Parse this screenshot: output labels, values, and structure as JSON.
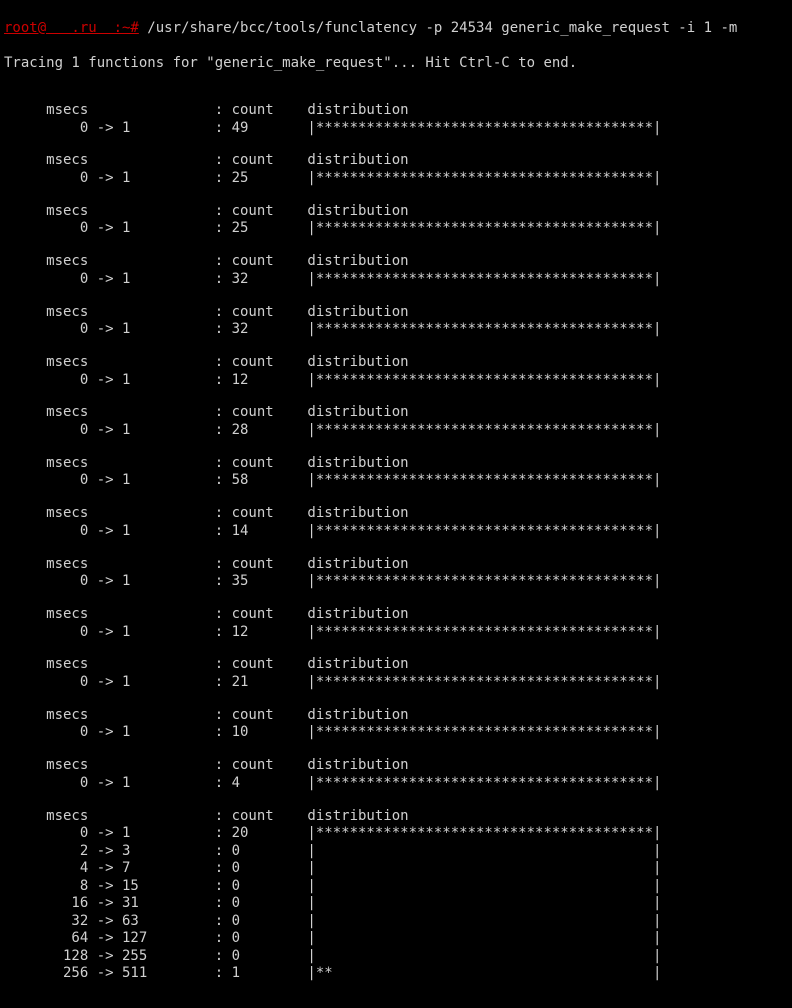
{
  "prompt": {
    "user_host": "root@   .ru  :~#",
    "command": "/usr/share/bcc/tools/funclatency -p 24534 generic_make_request -i 1 -m"
  },
  "trace_line": "Tracing 1 functions for \"generic_make_request\"... Hit Ctrl-C to end.",
  "header_labels": {
    "msecs": "msecs",
    "count": "count",
    "distribution": "distribution"
  },
  "bar": {
    "full_width": 40,
    "char": "*",
    "open": "|",
    "close": "|"
  },
  "colon": ":",
  "arrow": "->",
  "single_blocks": [
    {
      "range_lo": 0,
      "range_hi": 1,
      "count": 49,
      "fill": 40
    },
    {
      "range_lo": 0,
      "range_hi": 1,
      "count": 25,
      "fill": 40
    },
    {
      "range_lo": 0,
      "range_hi": 1,
      "count": 25,
      "fill": 40
    },
    {
      "range_lo": 0,
      "range_hi": 1,
      "count": 32,
      "fill": 40
    },
    {
      "range_lo": 0,
      "range_hi": 1,
      "count": 32,
      "fill": 40
    },
    {
      "range_lo": 0,
      "range_hi": 1,
      "count": 12,
      "fill": 40
    },
    {
      "range_lo": 0,
      "range_hi": 1,
      "count": 28,
      "fill": 40
    },
    {
      "range_lo": 0,
      "range_hi": 1,
      "count": 58,
      "fill": 40
    },
    {
      "range_lo": 0,
      "range_hi": 1,
      "count": 14,
      "fill": 40
    },
    {
      "range_lo": 0,
      "range_hi": 1,
      "count": 35,
      "fill": 40
    },
    {
      "range_lo": 0,
      "range_hi": 1,
      "count": 12,
      "fill": 40
    },
    {
      "range_lo": 0,
      "range_hi": 1,
      "count": 21,
      "fill": 40
    },
    {
      "range_lo": 0,
      "range_hi": 1,
      "count": 10,
      "fill": 40
    },
    {
      "range_lo": 0,
      "range_hi": 1,
      "count": 4,
      "fill": 40
    }
  ],
  "multi_block": {
    "rows": [
      {
        "range_lo": 0,
        "range_hi": 1,
        "count": 20,
        "fill": 40
      },
      {
        "range_lo": 2,
        "range_hi": 3,
        "count": 0,
        "fill": 0
      },
      {
        "range_lo": 4,
        "range_hi": 7,
        "count": 0,
        "fill": 0
      },
      {
        "range_lo": 8,
        "range_hi": 15,
        "count": 0,
        "fill": 0
      },
      {
        "range_lo": 16,
        "range_hi": 31,
        "count": 0,
        "fill": 0
      },
      {
        "range_lo": 32,
        "range_hi": 63,
        "count": 0,
        "fill": 0
      },
      {
        "range_lo": 64,
        "range_hi": 127,
        "count": 0,
        "fill": 0
      },
      {
        "range_lo": 128,
        "range_hi": 255,
        "count": 0,
        "fill": 0
      },
      {
        "range_lo": 256,
        "range_hi": 511,
        "count": 1,
        "fill": 2
      }
    ]
  },
  "colors": {
    "bg": "#000000",
    "fg": "#d0d0d0",
    "red": "#cc0000"
  }
}
